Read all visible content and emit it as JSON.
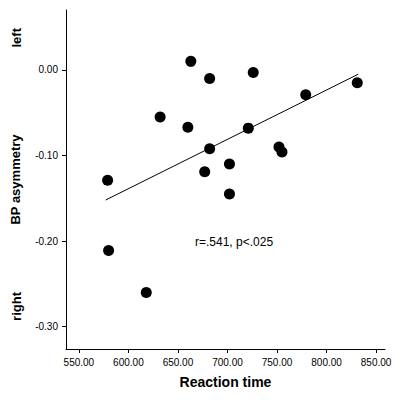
{
  "chart_data": {
    "type": "scatter",
    "xlabel": "Reaction time",
    "ylabel": "BP asymmetry",
    "y_direction_labels": {
      "high": "left",
      "low": "right"
    },
    "annotations": [
      "r=.541, p<.025"
    ],
    "xlim": [
      537,
      859
    ],
    "xticks": [
      {
        "value": 550,
        "label": "550.00"
      },
      {
        "value": 600,
        "label": "600.00"
      },
      {
        "value": 650,
        "label": "650.00"
      },
      {
        "value": 700,
        "label": "700.00"
      },
      {
        "value": 750,
        "label": "750.00"
      },
      {
        "value": 800,
        "label": "800.00"
      },
      {
        "value": 850,
        "label": "850.00"
      }
    ],
    "ylim": [
      -0.326,
      0.07
    ],
    "yticks": [
      {
        "value": -0.3,
        "label": "-0.30"
      },
      {
        "value": -0.2,
        "label": "-0.20"
      },
      {
        "value": -0.1,
        "label": "-0.10"
      },
      {
        "value": 0,
        "label": "0.00"
      }
    ],
    "grid": false,
    "series": [
      {
        "type": "scatter",
        "color": "#000000",
        "marker": "circle",
        "x": [
          579,
          580,
          618,
          632,
          660,
          663,
          682,
          682,
          677,
          702,
          702,
          721,
          726,
          752,
          755,
          779,
          831
        ],
        "values": [
          -0.129,
          -0.211,
          -0.26,
          -0.055,
          -0.067,
          0.01,
          -0.01,
          -0.092,
          -0.119,
          -0.11,
          -0.145,
          -0.068,
          -0.003,
          -0.09,
          -0.096,
          -0.029,
          -0.015
        ]
      },
      {
        "type": "line",
        "color": "#000000",
        "line_style": "solid",
        "x": [
          577,
          832
        ],
        "values": [
          -0.152,
          -0.005
        ]
      }
    ]
  }
}
